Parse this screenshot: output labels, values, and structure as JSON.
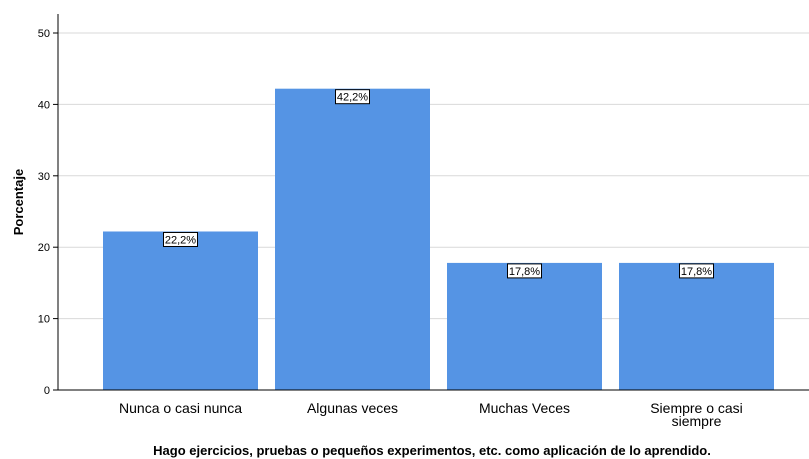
{
  "chart_data": {
    "type": "bar",
    "categories": [
      "Nunca o casi nunca",
      "Algunas veces",
      "Muchas Veces",
      "Siempre o casi siempre"
    ],
    "category_lines": [
      [
        "Nunca o casi nunca"
      ],
      [
        "Algunas veces"
      ],
      [
        "Muchas Veces"
      ],
      [
        "Siempre o casi",
        "siempre"
      ]
    ],
    "values": [
      22.2,
      42.2,
      17.8,
      17.8
    ],
    "data_labels": [
      "22,2%",
      "42,2%",
      "17,8%",
      "17,8%"
    ],
    "xlabel": "Hago  ejercicios, pruebas o pequeños experimentos, etc. como aplicación de lo aprendido.",
    "ylabel": "Porcentaje",
    "ylim": [
      0,
      50
    ],
    "yticks": [
      0,
      10,
      20,
      30,
      40,
      50
    ],
    "grid": true,
    "bar_color": "#5594e4"
  }
}
